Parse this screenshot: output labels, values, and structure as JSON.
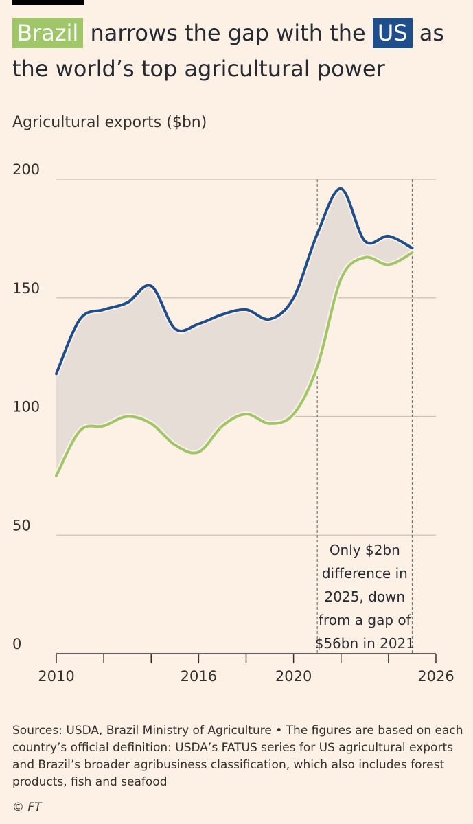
{
  "title": {
    "highlight_brazil": "Brazil",
    "mid_text": "narrows the gap with the",
    "highlight_us": "US",
    "end_text": "as the world’s top agricultural power"
  },
  "colors": {
    "brazil": "#a0c66a",
    "us": "#1f4e8c",
    "gap_fill": "#e6ddd7",
    "background": "#fdf1e6"
  },
  "chart_data": {
    "type": "line",
    "title": "Brazil narrows the gap with the US as the world’s top agricultural power",
    "ylabel": "Agricultural exports ($bn)",
    "xlabel": "",
    "ylim": [
      0,
      200
    ],
    "xlim": [
      2010,
      2026
    ],
    "y_ticks": [
      0,
      50,
      100,
      150,
      200
    ],
    "x_tick_labels": [
      2010,
      2016,
      2020,
      2026
    ],
    "x_minor_ticks": [
      2012,
      2014,
      2018,
      2022,
      2024
    ],
    "grid": true,
    "x": [
      2010,
      2011,
      2012,
      2013,
      2014,
      2015,
      2016,
      2017,
      2018,
      2019,
      2020,
      2021,
      2022,
      2023,
      2024,
      2025
    ],
    "series": [
      {
        "name": "US",
        "values": [
          118,
          141,
          145,
          148,
          155,
          137,
          139,
          143,
          145,
          141,
          150,
          177,
          196,
          174,
          176,
          171
        ]
      },
      {
        "name": "Brazil",
        "values": [
          75,
          94,
          96,
          100,
          97,
          88,
          85,
          96,
          101,
          97,
          101,
          121,
          158,
          167,
          164,
          169
        ]
      }
    ],
    "reference_lines": [
      2021,
      2025
    ],
    "annotation": [
      "Only $2bn",
      "difference in",
      "2025, down",
      "from a gap of",
      "$56bn in 2021"
    ]
  },
  "footer": {
    "sources": "Sources: USDA, Brazil Ministry of Agriculture • The figures are based on each country’s official definition: USDA’s FATUS series for US agricultural exports and Brazil’s broader agribusiness classification, which also includes forest products, fish and seafood",
    "credit": "© FT"
  }
}
